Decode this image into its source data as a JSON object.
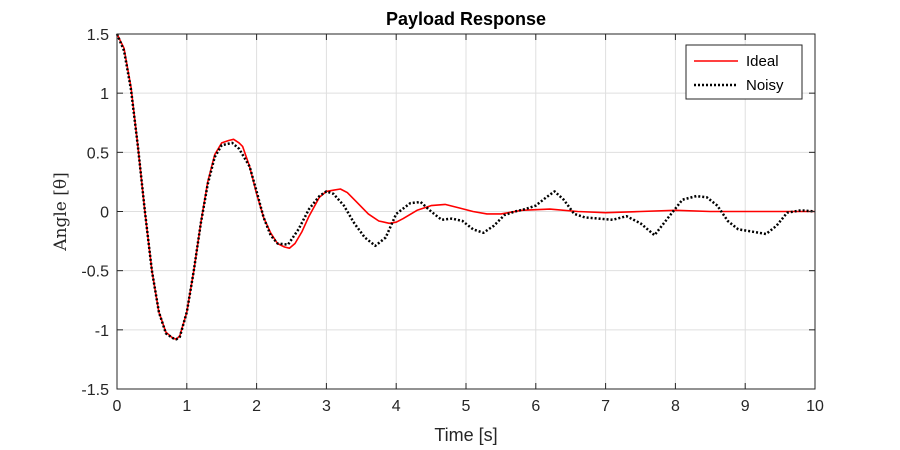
{
  "chart_data": {
    "type": "line",
    "title": "Payload Response",
    "xlabel": "Time [s]",
    "ylabel": "Angle [θ]",
    "xlim": [
      0,
      10
    ],
    "ylim": [
      -1.5,
      1.5
    ],
    "xticks": [
      0,
      1,
      2,
      3,
      4,
      5,
      6,
      7,
      8,
      9,
      10
    ],
    "yticks": [
      1.5,
      1,
      0.5,
      0,
      -0.5,
      -1,
      -1.5
    ],
    "grid": true,
    "legend_position": "top-right",
    "series": [
      {
        "name": "Ideal",
        "color": "#ff0000",
        "style": "solid",
        "x": [
          0,
          0.1,
          0.2,
          0.3,
          0.4,
          0.5,
          0.6,
          0.7,
          0.8,
          0.85,
          0.9,
          1.0,
          1.1,
          1.2,
          1.3,
          1.4,
          1.5,
          1.6,
          1.67,
          1.75,
          1.8,
          1.9,
          2.0,
          2.1,
          2.2,
          2.3,
          2.4,
          2.47,
          2.55,
          2.65,
          2.75,
          2.9,
          3.0,
          3.1,
          3.2,
          3.3,
          3.45,
          3.6,
          3.75,
          3.9,
          4.0,
          4.1,
          4.3,
          4.5,
          4.7,
          4.9,
          5.1,
          5.3,
          5.5,
          5.8,
          6.2,
          6.6,
          7.0,
          7.5,
          8.0,
          8.5,
          9.0,
          9.5,
          10.0
        ],
        "y": [
          1.5,
          1.38,
          1.05,
          0.55,
          0.0,
          -0.5,
          -0.85,
          -1.02,
          -1.07,
          -1.08,
          -1.05,
          -0.85,
          -0.5,
          -0.1,
          0.25,
          0.48,
          0.58,
          0.6,
          0.61,
          0.58,
          0.55,
          0.38,
          0.15,
          -0.05,
          -0.18,
          -0.27,
          -0.3,
          -0.31,
          -0.27,
          -0.17,
          -0.04,
          0.12,
          0.17,
          0.18,
          0.19,
          0.16,
          0.07,
          -0.02,
          -0.08,
          -0.1,
          -0.09,
          -0.06,
          0.01,
          0.05,
          0.06,
          0.03,
          0.0,
          -0.02,
          -0.02,
          0.01,
          0.02,
          0.0,
          -0.01,
          0.0,
          0.01,
          0.0,
          0.0,
          0.0,
          0.0
        ]
      },
      {
        "name": "Noisy",
        "color": "#000000",
        "style": "dotted",
        "x": [
          0,
          0.1,
          0.2,
          0.3,
          0.4,
          0.5,
          0.6,
          0.7,
          0.8,
          0.85,
          0.9,
          1.0,
          1.1,
          1.2,
          1.3,
          1.4,
          1.5,
          1.65,
          1.75,
          1.9,
          2.0,
          2.1,
          2.2,
          2.3,
          2.45,
          2.6,
          2.75,
          2.9,
          3.0,
          3.1,
          3.25,
          3.4,
          3.55,
          3.7,
          3.85,
          4.0,
          4.2,
          4.35,
          4.5,
          4.65,
          4.8,
          4.95,
          5.1,
          5.25,
          5.4,
          5.55,
          5.7,
          5.85,
          6.0,
          6.15,
          6.27,
          6.4,
          6.55,
          6.7,
          6.9,
          7.1,
          7.3,
          7.5,
          7.7,
          7.9,
          8.1,
          8.3,
          8.45,
          8.6,
          8.75,
          8.9,
          9.1,
          9.3,
          9.45,
          9.6,
          9.8,
          10.0
        ],
        "y": [
          1.5,
          1.36,
          1.03,
          0.55,
          0.0,
          -0.5,
          -0.85,
          -1.03,
          -1.07,
          -1.08,
          -1.06,
          -0.85,
          -0.5,
          -0.1,
          0.23,
          0.46,
          0.56,
          0.58,
          0.53,
          0.38,
          0.17,
          -0.05,
          -0.2,
          -0.27,
          -0.28,
          -0.15,
          0.02,
          0.13,
          0.17,
          0.15,
          0.05,
          -0.1,
          -0.22,
          -0.29,
          -0.22,
          -0.02,
          0.07,
          0.08,
          0.0,
          -0.07,
          -0.06,
          -0.08,
          -0.15,
          -0.18,
          -0.12,
          -0.03,
          0.0,
          0.02,
          0.05,
          0.12,
          0.17,
          0.1,
          -0.02,
          -0.05,
          -0.06,
          -0.07,
          -0.04,
          -0.1,
          -0.2,
          -0.05,
          0.1,
          0.13,
          0.12,
          0.05,
          -0.08,
          -0.15,
          -0.17,
          -0.19,
          -0.12,
          -0.01,
          0.01,
          0.0
        ]
      }
    ]
  }
}
